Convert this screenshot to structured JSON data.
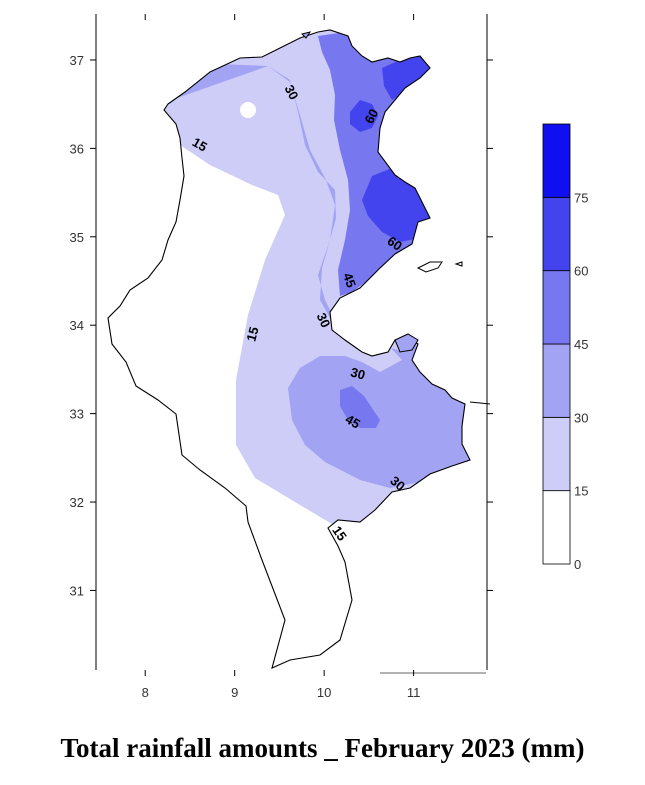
{
  "title": "Total rainfall amounts _ February 2023 (mm)",
  "colors": {
    "band_0_15": "#ffffff",
    "band_15_30": "#cdcdf8",
    "band_30_45": "#a3a3f3",
    "band_45_60": "#7777f0",
    "band_60_75": "#4444ee",
    "band_75_plus": "#0f0fef",
    "outline": "#000000"
  },
  "chart_data": {
    "type": "contour-map",
    "x_ticks": [
      "8",
      "9",
      "10",
      "11"
    ],
    "y_ticks": [
      "37",
      "36",
      "35",
      "34",
      "33",
      "32",
      "31"
    ],
    "xlim": [
      7.45,
      11.82
    ],
    "ylim": [
      30.1,
      37.52
    ],
    "colorbar_levels": [
      "0",
      "15",
      "30",
      "45",
      "60",
      "75"
    ],
    "contour_labels": [
      "30",
      "60",
      "15",
      "60",
      "45",
      "30",
      "15",
      "30",
      "45",
      "30",
      "15"
    ]
  }
}
